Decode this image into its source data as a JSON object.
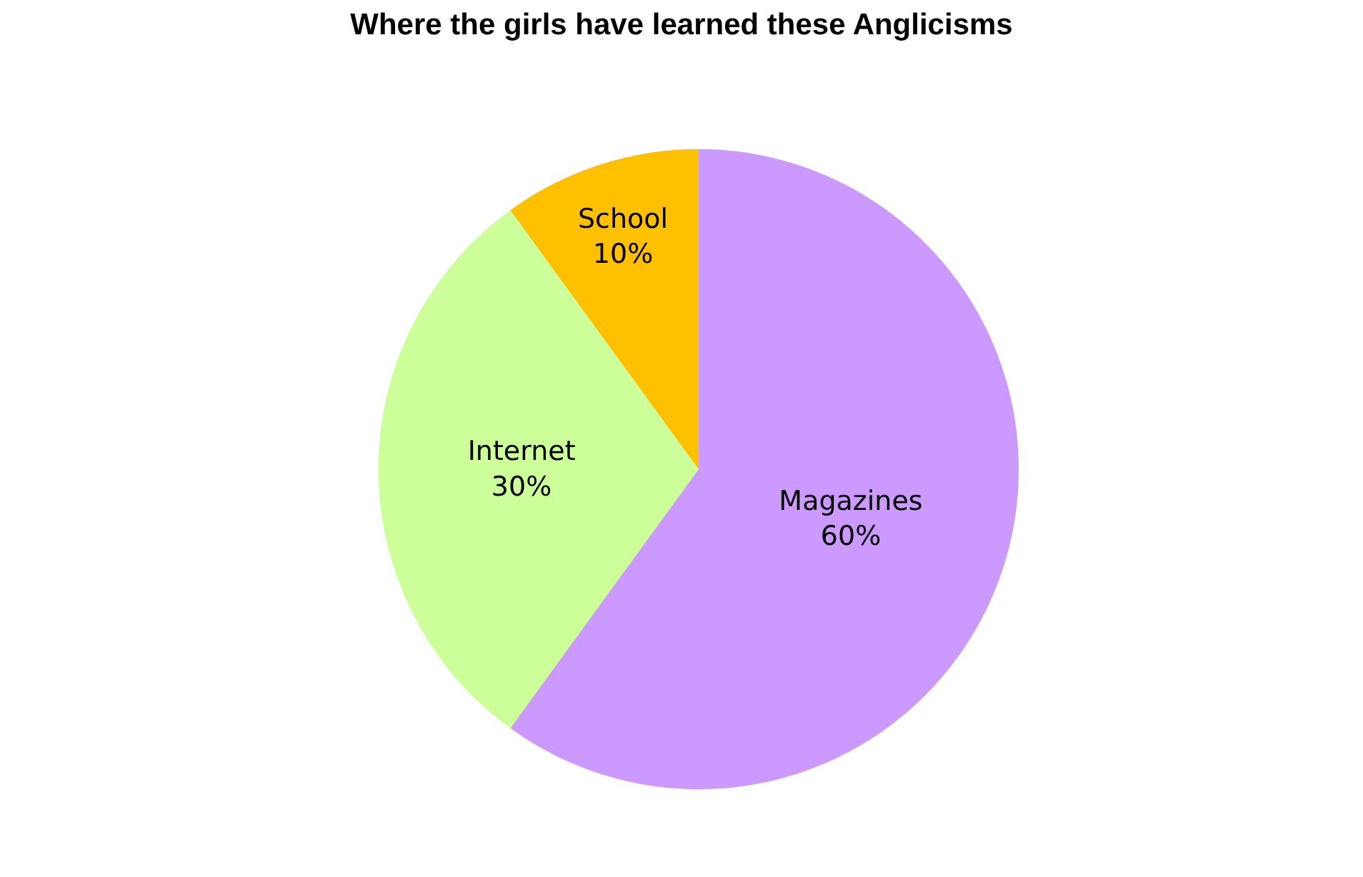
{
  "chart_data": {
    "type": "pie",
    "title": "Where the girls have learned these Anglicisms",
    "categories": [
      "Magazines",
      "Internet",
      "School"
    ],
    "values": [
      60,
      30,
      10
    ],
    "value_labels": [
      "60%",
      "30%",
      "10%"
    ],
    "colors": [
      "#cc99ff",
      "#ccff99",
      "#ffc000"
    ],
    "legend": false
  }
}
